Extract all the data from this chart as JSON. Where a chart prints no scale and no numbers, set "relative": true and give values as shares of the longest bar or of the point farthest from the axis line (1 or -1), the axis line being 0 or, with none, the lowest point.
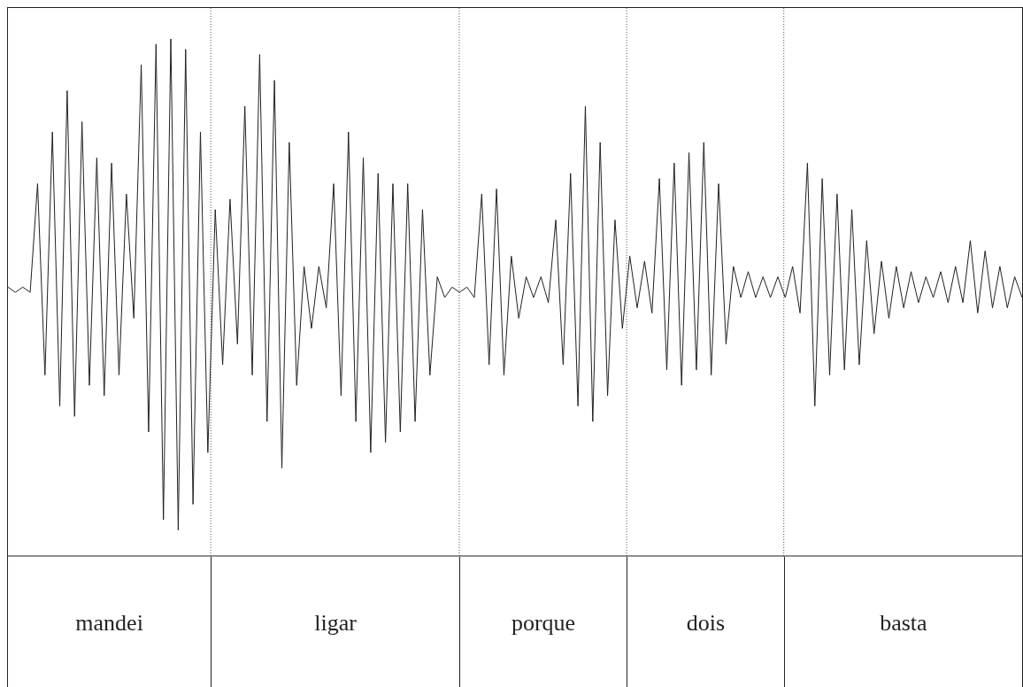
{
  "chart_data": {
    "type": "line",
    "relative": true,
    "tick_labels": false,
    "color": "#231f20",
    "categories": [
      null,
      null,
      null,
      null,
      null,
      null,
      null,
      null,
      null,
      null,
      null,
      null,
      null,
      null,
      null,
      null,
      null,
      null,
      null,
      null,
      null,
      null,
      null,
      null,
      null,
      null,
      null,
      null,
      null,
      null,
      null,
      null,
      null,
      null,
      null,
      null,
      null,
      null,
      null,
      null,
      null,
      null,
      null,
      null,
      null,
      null,
      null,
      null,
      null,
      null,
      null,
      null,
      null,
      null,
      null,
      null,
      null,
      null,
      null,
      null,
      null,
      null,
      null,
      null,
      null,
      null,
      null,
      null,
      null,
      null,
      null,
      null,
      null,
      null,
      null,
      null,
      null,
      null,
      null,
      null,
      null,
      null,
      null,
      null,
      null,
      null,
      null,
      null,
      null,
      null,
      null,
      null,
      null,
      null,
      null,
      null,
      null,
      null,
      null,
      null,
      null,
      null,
      null,
      null,
      null,
      null,
      null,
      null,
      null,
      null,
      null,
      null,
      null,
      null,
      null,
      null,
      null,
      null,
      null,
      null,
      null,
      null,
      null,
      null,
      null,
      null,
      null,
      null,
      null,
      null,
      null,
      null,
      null,
      null,
      null,
      null,
      null,
      null
    ],
    "values": [
      0.52,
      0.51,
      0.52,
      0.51,
      0.72,
      0.35,
      0.82,
      0.29,
      0.9,
      0.27,
      0.84,
      0.33,
      0.77,
      0.31,
      0.76,
      0.35,
      0.7,
      0.46,
      0.95,
      0.24,
      0.99,
      0.07,
      1.0,
      0.05,
      0.98,
      0.1,
      0.82,
      0.2,
      0.67,
      0.37,
      0.69,
      0.41,
      0.87,
      0.35,
      0.97,
      0.26,
      0.92,
      0.17,
      0.8,
      0.33,
      0.56,
      0.44,
      0.56,
      0.48,
      0.72,
      0.31,
      0.82,
      0.26,
      0.77,
      0.2,
      0.74,
      0.22,
      0.72,
      0.24,
      0.72,
      0.26,
      0.67,
      0.35,
      0.54,
      0.5,
      0.52,
      0.51,
      0.52,
      0.5,
      0.7,
      0.37,
      0.71,
      0.35,
      0.58,
      0.46,
      0.54,
      0.5,
      0.54,
      0.49,
      0.65,
      0.37,
      0.74,
      0.29,
      0.87,
      0.26,
      0.8,
      0.31,
      0.65,
      0.44,
      0.58,
      0.48,
      0.57,
      0.47,
      0.73,
      0.36,
      0.76,
      0.33,
      0.78,
      0.36,
      0.8,
      0.35,
      0.72,
      0.41,
      0.56,
      0.5,
      0.55,
      0.5,
      0.54,
      0.5,
      0.54,
      0.5,
      0.56,
      0.47,
      0.76,
      0.29,
      0.73,
      0.35,
      0.7,
      0.36,
      0.67,
      0.37,
      0.61,
      0.43,
      0.57,
      0.46,
      0.56,
      0.48,
      0.55,
      0.49,
      0.54,
      0.5,
      0.55,
      0.49,
      0.56,
      0.49,
      0.61,
      0.47,
      0.59,
      0.48,
      0.56,
      0.48,
      0.54,
      0.5
    ],
    "annotations": [
      "mandei",
      "ligar",
      "porque",
      "dois",
      "basta"
    ]
  }
}
